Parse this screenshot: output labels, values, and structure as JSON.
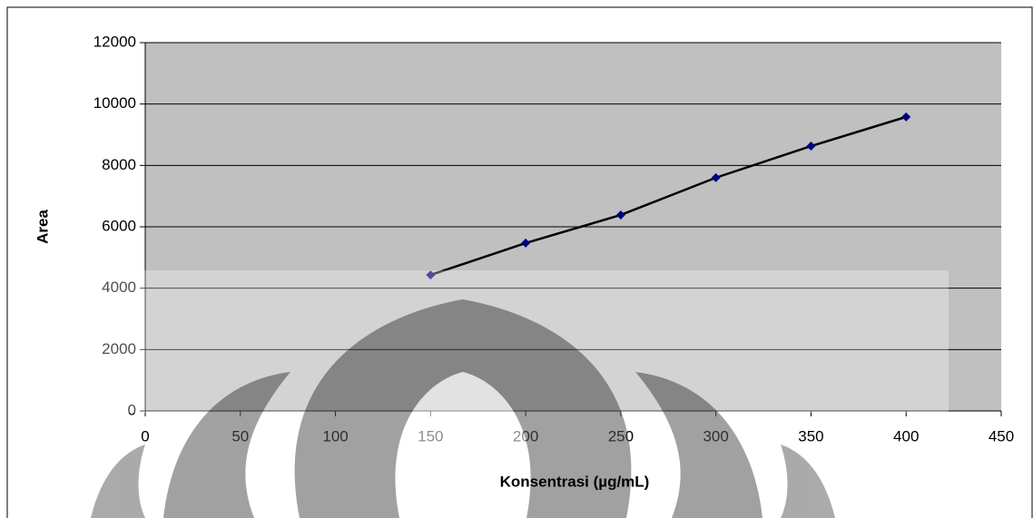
{
  "chart_data": {
    "type": "scatter-line",
    "x_label": "Konsentrasi (µg/mL)",
    "y_label": "Area",
    "x": [
      150,
      200,
      250,
      300,
      350,
      400
    ],
    "values": [
      4430,
      5470,
      6385,
      7600,
      8630,
      9580
    ],
    "color": "#000080",
    "line_color": "#000000",
    "plot_background": "#c0c0c0",
    "xlim": [
      0,
      450
    ],
    "xticks": [
      0,
      50,
      100,
      150,
      200,
      250,
      300,
      350,
      400,
      450
    ],
    "ylim": [
      0,
      12000
    ],
    "yticks": [
      0,
      2000,
      4000,
      6000,
      8000,
      10000,
      12000
    ],
    "grid": true
  }
}
